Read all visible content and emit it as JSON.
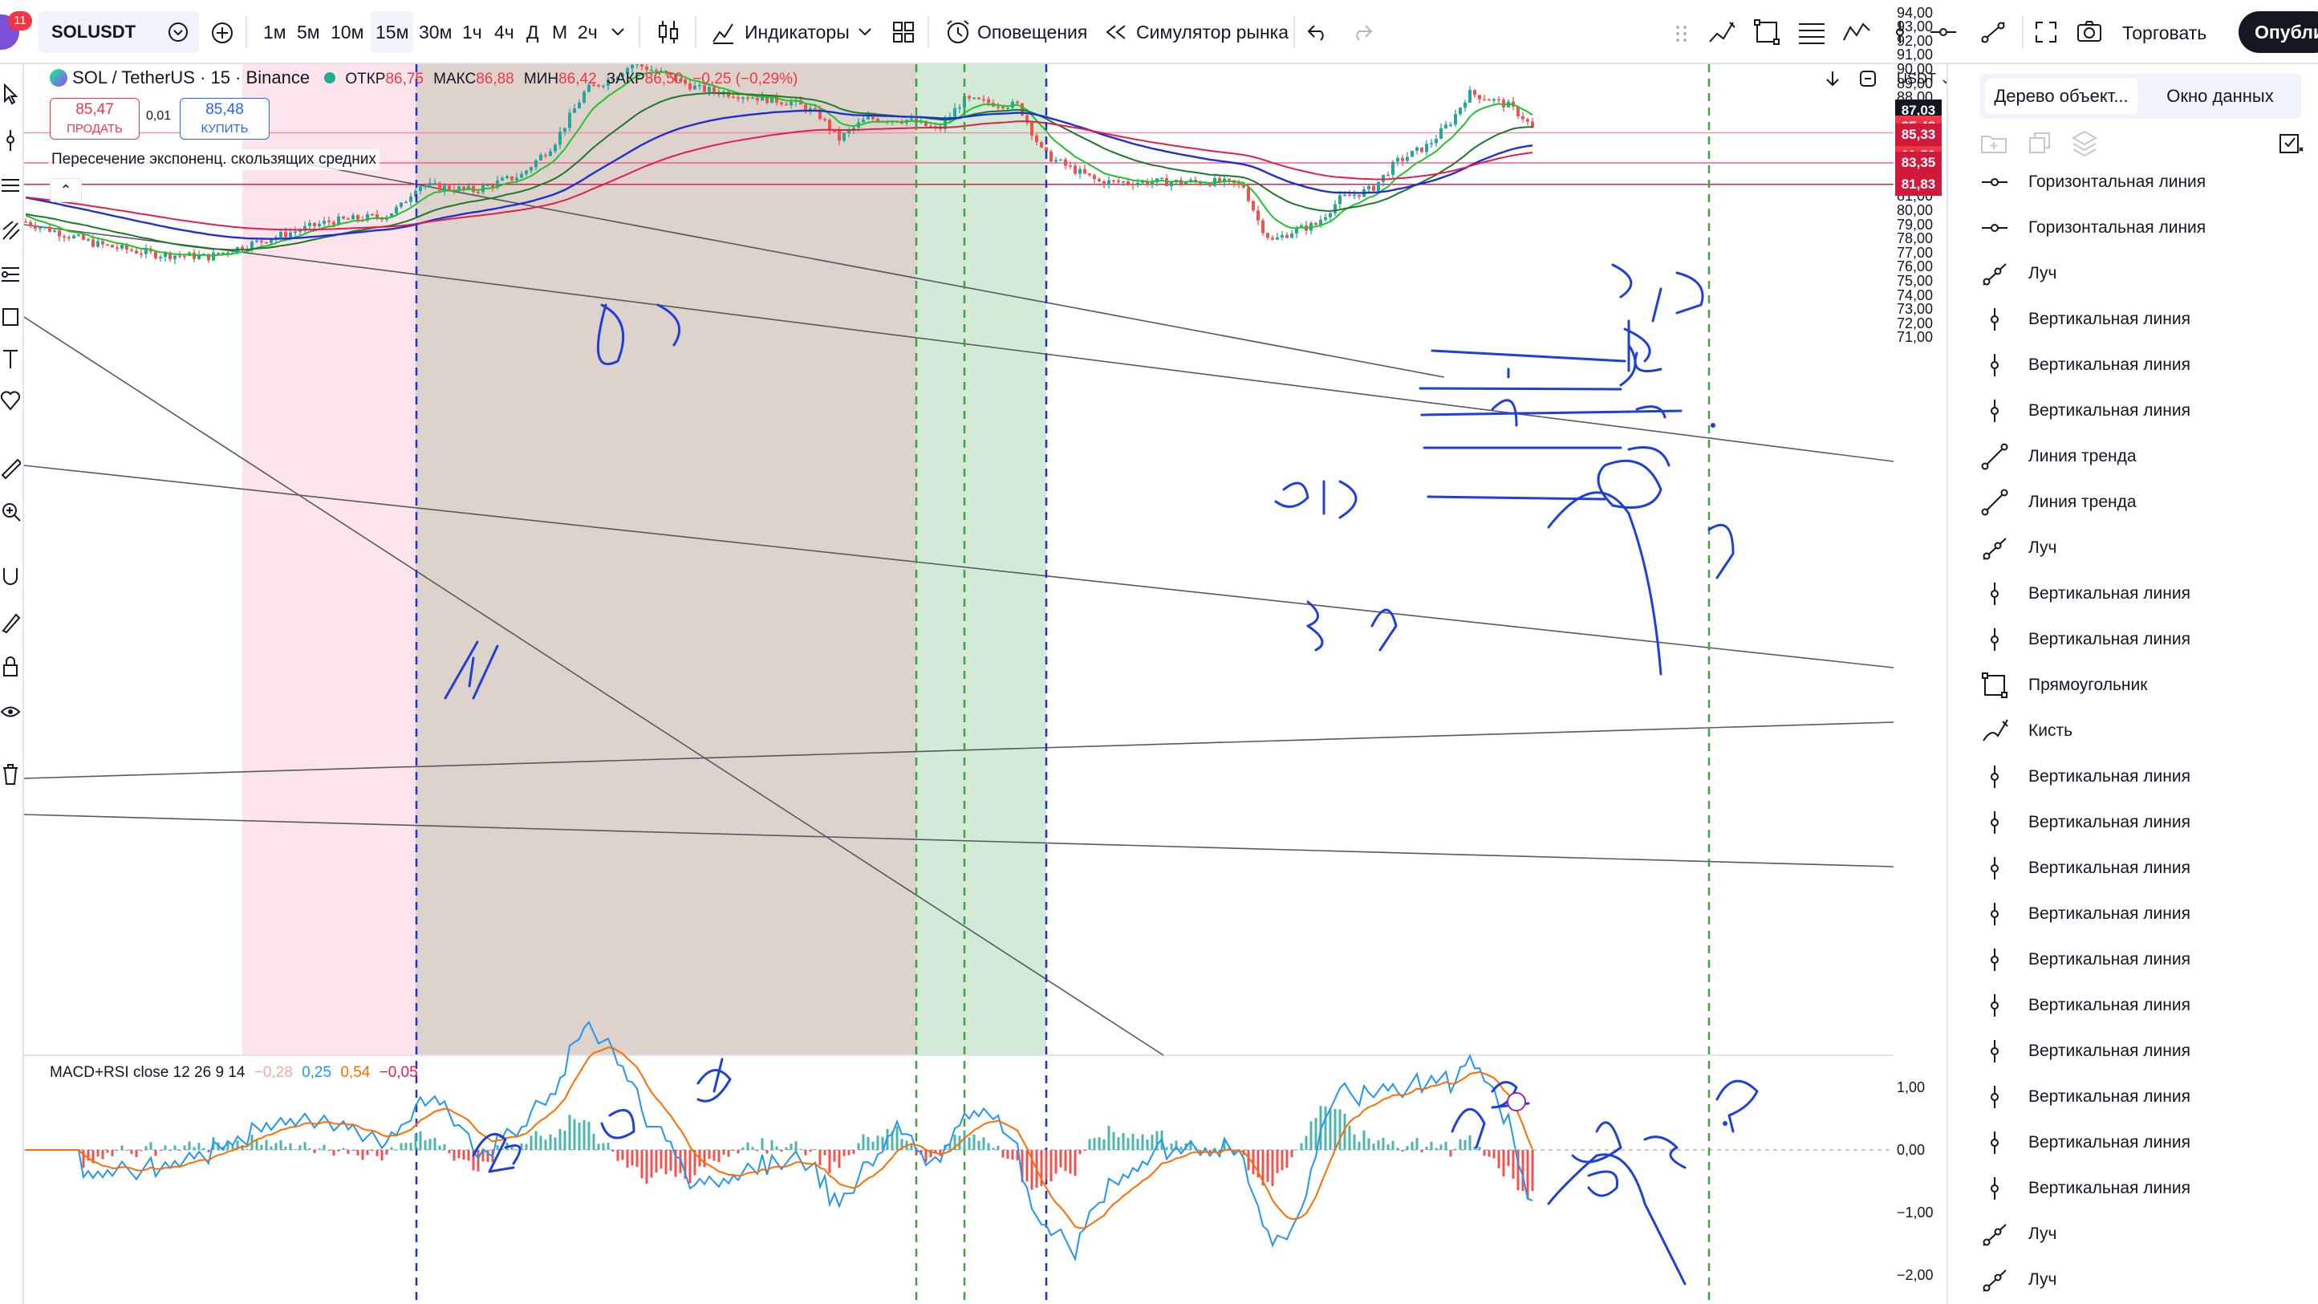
{
  "account": {
    "badge": "11"
  },
  "symbol": {
    "name": "SOLUSDT"
  },
  "toolbar": {
    "intervals": [
      "1м",
      "5м",
      "10м",
      "15м",
      "30м",
      "1ч",
      "4ч",
      "Д",
      "М",
      "2ч"
    ],
    "active_interval": "15м",
    "indicators_label": "Индикаторы",
    "alerts_label": "Оповещения",
    "replay_label": "Симулятор рынка",
    "trade_label": "Торговать",
    "publish_label": "Опубликовать"
  },
  "legend": {
    "pair": "SOL / TetherUS · 15 · Binance",
    "open_label": "ОТКР",
    "open": "86,75",
    "high_label": "МАКС",
    "high": "86,88",
    "low_label": "МИН",
    "low": "86,42",
    "close_label": "ЗАКР",
    "close": "86,50",
    "change": "−0,25 (−0,29%)"
  },
  "trade": {
    "sell_price": "85,47",
    "sell_label": "ПРОДАТЬ",
    "spread": "0,01",
    "buy_price": "85,48",
    "buy_label": "КУПИТЬ"
  },
  "indicator_ema": {
    "title": "Пересечение экспоненц. скользящих средних"
  },
  "indicator_macd": {
    "title": "MACD+RSI close 12 26 9 14",
    "v1": "−0,28",
    "v2": "0,25",
    "v3": "0,54",
    "v4": "−0,05"
  },
  "price_axis": {
    "currency": "USDT",
    "labels": [
      "94,00",
      "93,00",
      "92,00",
      "91,00",
      "90,00",
      "89,00",
      "88,00",
      "86,00",
      "84,00",
      "83,00",
      "81,00",
      "80,00",
      "79,00",
      "78,00",
      "77,00",
      "76,00",
      "75,00",
      "74,00",
      "73,00",
      "72,00",
      "71,00"
    ],
    "macd_labels": [
      "1,00",
      "0,00",
      "−1,00",
      "−2,00"
    ],
    "badges": [
      {
        "text": "87,03",
        "color": "#131722"
      },
      {
        "text": "85,48",
        "color": "#f23645"
      },
      {
        "text": "11:59",
        "color": "#f23645"
      },
      {
        "text": "85,33",
        "color": "#d1193c"
      },
      {
        "text": "83,35",
        "color": "#d1193c"
      },
      {
        "text": "81,83",
        "color": "#d1193c"
      }
    ]
  },
  "right_panel": {
    "tab_objects": "Дерево объект...",
    "tab_data": "Окно данных",
    "items": [
      {
        "label": "Горизонтальная линия",
        "icon": "horizontal-line-icon"
      },
      {
        "label": "Горизонтальная линия",
        "icon": "horizontal-line-icon"
      },
      {
        "label": "Луч",
        "icon": "ray-icon"
      },
      {
        "label": "Вертикальная линия",
        "icon": "vertical-line-icon"
      },
      {
        "label": "Вертикальная линия",
        "icon": "vertical-line-icon"
      },
      {
        "label": "Вертикальная линия",
        "icon": "vertical-line-icon"
      },
      {
        "label": "Линия тренда",
        "icon": "trend-line-icon"
      },
      {
        "label": "Линия тренда",
        "icon": "trend-line-icon"
      },
      {
        "label": "Луч",
        "icon": "ray-icon"
      },
      {
        "label": "Вертикальная линия",
        "icon": "vertical-line-icon"
      },
      {
        "label": "Вертикальная линия",
        "icon": "vertical-line-icon"
      },
      {
        "label": "Прямоугольник",
        "icon": "rectangle-icon"
      },
      {
        "label": "Кисть",
        "icon": "brush-icon"
      },
      {
        "label": "Вертикальная линия",
        "icon": "vertical-line-icon"
      },
      {
        "label": "Вертикальная линия",
        "icon": "vertical-line-icon"
      },
      {
        "label": "Вертикальная линия",
        "icon": "vertical-line-icon"
      },
      {
        "label": "Вертикальная линия",
        "icon": "vertical-line-icon"
      },
      {
        "label": "Вертикальная линия",
        "icon": "vertical-line-icon"
      },
      {
        "label": "Вертикальная линия",
        "icon": "vertical-line-icon"
      },
      {
        "label": "Вертикальная линия",
        "icon": "vertical-line-icon"
      },
      {
        "label": "Вертикальная линия",
        "icon": "vertical-line-icon"
      },
      {
        "label": "Вертикальная линия",
        "icon": "vertical-line-icon"
      },
      {
        "label": "Вертикальная линия",
        "icon": "vertical-line-icon"
      },
      {
        "label": "Луч",
        "icon": "ray-icon"
      },
      {
        "label": "Луч",
        "icon": "ray-icon"
      }
    ]
  },
  "colors": {
    "up": "#26a69a",
    "down": "#ef5350",
    "ema_fast": "#22c32a",
    "ema_mid": "#1a7a2a",
    "ema_slow": "#2030d0",
    "ema_long": "#e0204a",
    "macd": "#2196f3",
    "signal": "#ff6d00",
    "drawing": "#1e40d8",
    "zone_pink": "#fde4ec",
    "zone_brown": "#ddd3cc",
    "zone_green": "#d2ead6"
  }
}
